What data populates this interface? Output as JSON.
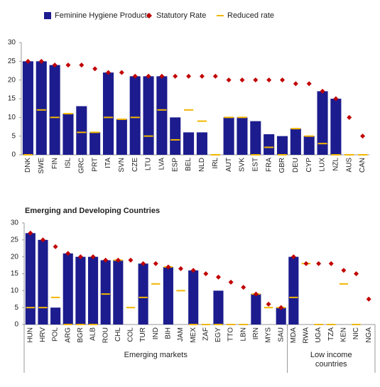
{
  "chart_data": [
    {
      "type": "bar-marker",
      "categories": [
        "DNK",
        "SWE",
        "FIN",
        "ISL",
        "GRC",
        "PRT",
        "ITA",
        "SVN",
        "CZE",
        "LTU",
        "LVA",
        "ESP",
        "BEL",
        "NLD",
        "IRL",
        "AUT",
        "SVK",
        "EST",
        "FRA",
        "GBR",
        "DEU",
        "CYP",
        "LUX",
        "NZL",
        "AUS",
        "CAN"
      ],
      "series": [
        {
          "name": "Feminine Hygiene Products",
          "color": "#1c1c8e",
          "values": [
            25,
            25,
            24,
            11,
            13,
            6,
            22,
            9.5,
            21,
            21,
            21,
            10,
            6,
            6,
            0,
            10,
            10,
            9,
            5.5,
            5,
            7,
            5,
            17,
            15,
            0,
            0
          ]
        },
        {
          "name": "Statutory Rate",
          "color": "#c00000",
          "values": [
            25,
            25,
            24,
            24,
            24,
            23,
            22,
            22,
            21,
            21,
            21,
            21,
            21,
            21,
            21,
            20,
            20,
            20,
            20,
            20,
            19,
            19,
            17,
            15,
            10,
            5
          ]
        },
        {
          "name": "Reduced rate",
          "color": "#f2b600",
          "values": [
            0,
            12,
            10,
            11,
            6,
            6,
            10,
            9.5,
            10,
            5,
            12,
            4,
            12,
            9,
            0,
            10,
            10,
            0,
            2,
            0,
            7,
            5,
            3,
            0,
            0,
            0
          ]
        }
      ],
      "ylim": [
        0,
        30
      ],
      "yticks": [
        0,
        5,
        10,
        15,
        20,
        25,
        30
      ]
    },
    {
      "type": "bar-marker",
      "title": "Emerging and Developing Countries",
      "categories": [
        "HUN",
        "HRV",
        "POL",
        "ARG",
        "BGR",
        "ALB",
        "ROU",
        "CHL",
        "COL",
        "TUR",
        "IND",
        "BIH",
        "JAM",
        "MEX",
        "ZAF",
        "EGY",
        "TTO",
        "LBN",
        "IRN",
        "MYS",
        "SAU",
        "MDA",
        "RWA",
        "UGA",
        "TZA",
        "KEN",
        "NIC",
        "NGA"
      ],
      "groups": [
        "Emerging markets",
        "Low income countries"
      ],
      "series": [
        {
          "color": "#1c1c8e",
          "values": [
            27,
            25,
            5,
            21,
            20,
            20,
            19,
            19,
            0,
            18,
            0,
            17,
            0,
            16,
            0,
            10,
            0,
            0,
            9,
            0,
            5,
            20,
            0,
            0,
            0,
            0,
            0,
            0
          ]
        },
        {
          "color": "#c00000",
          "values": [
            27,
            25,
            23,
            21,
            20,
            20,
            19,
            19,
            19,
            18,
            18,
            17,
            16.5,
            16,
            15,
            14,
            12.5,
            11,
            9,
            6,
            5,
            20,
            18,
            18,
            18,
            16,
            15,
            7.5
          ]
        },
        {
          "color": "#f2b600",
          "values": [
            5,
            5,
            8,
            0,
            0,
            0,
            9,
            19,
            5,
            8,
            12,
            17,
            10,
            0,
            0,
            0,
            0,
            0,
            9,
            5,
            5,
            8,
            18,
            0,
            0,
            12,
            0,
            null
          ]
        }
      ],
      "ylim": [
        0,
        30
      ],
      "yticks": [
        0,
        5,
        10,
        15,
        20,
        25,
        30
      ]
    }
  ]
}
